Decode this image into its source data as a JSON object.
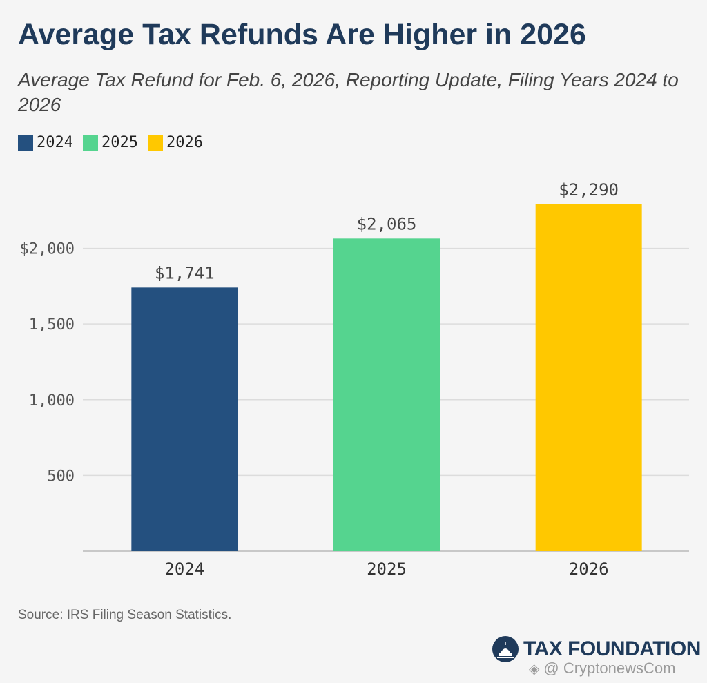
{
  "header": {
    "title": "Average Tax Refunds Are Higher in 2026",
    "subtitle": "Average Tax Refund for Feb. 6, 2026, Reporting Update, Filing Years 2024 to 2026"
  },
  "legend": [
    {
      "label": "2024",
      "color": "#24507f"
    },
    {
      "label": "2025",
      "color": "#55d48f"
    },
    {
      "label": "2026",
      "color": "#ffc800"
    }
  ],
  "chart_data": {
    "type": "bar",
    "title": "Average Tax Refunds Are Higher in 2026",
    "categories": [
      "2024",
      "2025",
      "2026"
    ],
    "values": [
      1741,
      2065,
      2290
    ],
    "value_labels": [
      "$1,741",
      "$2,065",
      "$2,290"
    ],
    "colors": [
      "#24507f",
      "#55d48f",
      "#ffc800"
    ],
    "y_ticks": [
      500,
      1000,
      1500,
      2000
    ],
    "y_tick_labels": [
      "500",
      "1,000",
      "1,500",
      "$2,000"
    ],
    "ylim": [
      0,
      2290
    ],
    "grid": true,
    "xlabel": "",
    "ylabel": ""
  },
  "footer": {
    "source": "Source: IRS Filing Season Statistics.",
    "brand": "TAX FOUNDATION",
    "watermark": "@ CryptonewsCom"
  }
}
